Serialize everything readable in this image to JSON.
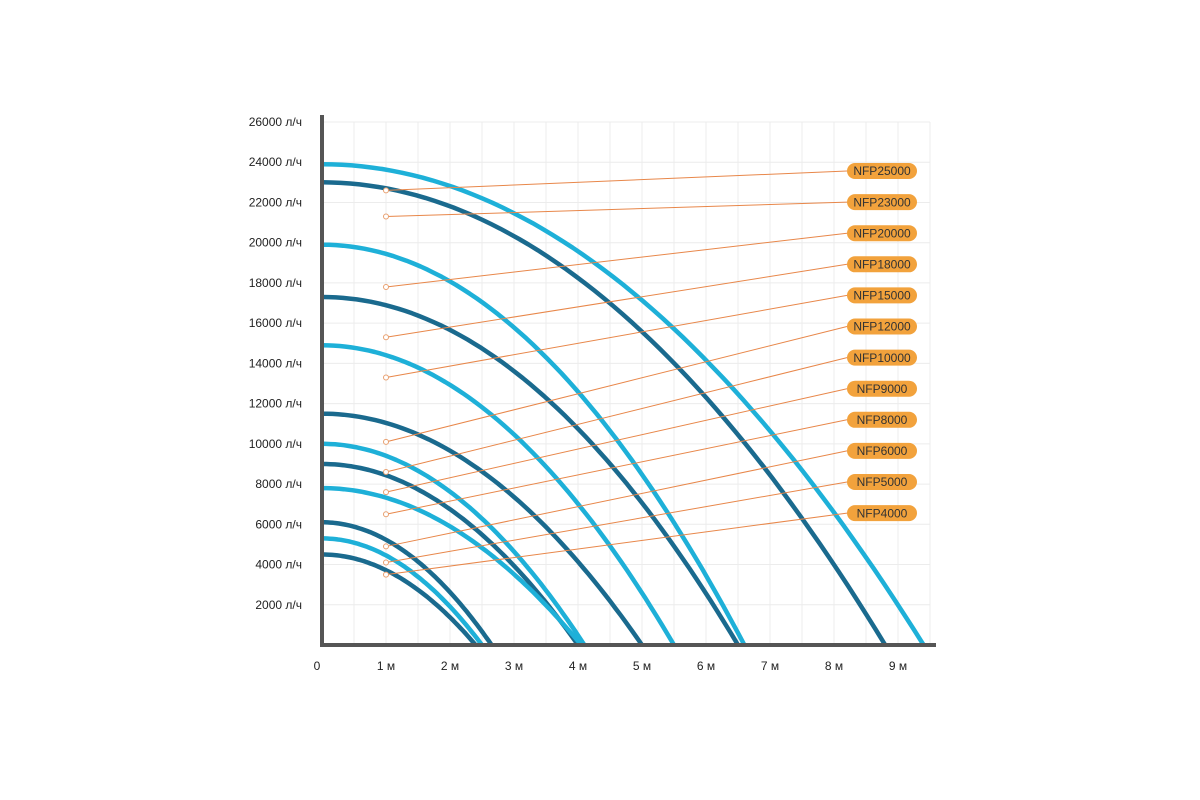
{
  "chart_data": {
    "type": "line",
    "xlim": [
      0,
      9.5
    ],
    "ylim": [
      0,
      26000
    ],
    "x_ticks": [
      {
        "value": 0,
        "label": "0"
      },
      {
        "value": 1,
        "label": "1 м"
      },
      {
        "value": 2,
        "label": "2 м"
      },
      {
        "value": 3,
        "label": "3 м"
      },
      {
        "value": 4,
        "label": "4 м"
      },
      {
        "value": 5,
        "label": "5 м"
      },
      {
        "value": 6,
        "label": "6 м"
      },
      {
        "value": 7,
        "label": "7 м"
      },
      {
        "value": 8,
        "label": "8 м"
      },
      {
        "value": 9,
        "label": "9 м"
      }
    ],
    "y_ticks": [
      {
        "value": 2000,
        "label": "2000 л/ч"
      },
      {
        "value": 4000,
        "label": "4000 л/ч"
      },
      {
        "value": 6000,
        "label": "6000 л/ч"
      },
      {
        "value": 8000,
        "label": "8000 л/ч"
      },
      {
        "value": 10000,
        "label": "10000 л/ч"
      },
      {
        "value": 12000,
        "label": "12000 л/ч"
      },
      {
        "value": 14000,
        "label": "14000 л/ч"
      },
      {
        "value": 16000,
        "label": "16000 л/ч"
      },
      {
        "value": 18000,
        "label": "18000 л/ч"
      },
      {
        "value": 20000,
        "label": "20000 л/ч"
      },
      {
        "value": 22000,
        "label": "22000 л/ч"
      },
      {
        "value": 24000,
        "label": "24000 л/ч"
      },
      {
        "value": 26000,
        "label": "26000 л/ч"
      }
    ],
    "grid": true,
    "legend_position": "right",
    "colors": {
      "light": "#1eb0d8",
      "dark": "#1a6a8e",
      "label_bg": "#f2a23c",
      "leader": "#e8874a",
      "axis": "#555555",
      "grid": "#ececec"
    },
    "series": [
      {
        "name": "NFP25000",
        "max_flow": 23900,
        "max_head": 9.4,
        "marker_flow": 22600,
        "color": "light"
      },
      {
        "name": "NFP23000",
        "max_flow": 23000,
        "max_head": 8.8,
        "marker_flow": 21300,
        "color": "dark"
      },
      {
        "name": "NFP20000",
        "max_flow": 19900,
        "max_head": 6.6,
        "marker_flow": 17800,
        "color": "light"
      },
      {
        "name": "NFP18000",
        "max_flow": 17300,
        "max_head": 6.5,
        "marker_flow": 15300,
        "color": "dark"
      },
      {
        "name": "NFP15000",
        "max_flow": 14900,
        "max_head": 5.5,
        "marker_flow": 13300,
        "color": "light"
      },
      {
        "name": "NFP12000",
        "max_flow": 11500,
        "max_head": 5.0,
        "marker_flow": 10100,
        "color": "dark"
      },
      {
        "name": "NFP10000",
        "max_flow": 10000,
        "max_head": 4.1,
        "marker_flow": 8600,
        "color": "light"
      },
      {
        "name": "NFP9000",
        "max_flow": 9000,
        "max_head": 4.0,
        "marker_flow": 7600,
        "color": "dark"
      },
      {
        "name": "NFP8000",
        "max_flow": 7800,
        "max_head": 4.05,
        "marker_flow": 6500,
        "color": "light"
      },
      {
        "name": "NFP6000",
        "max_flow": 6100,
        "max_head": 2.65,
        "marker_flow": 4900,
        "color": "dark"
      },
      {
        "name": "NFP5000",
        "max_flow": 5300,
        "max_head": 2.5,
        "marker_flow": 4100,
        "color": "light"
      },
      {
        "name": "NFP4000",
        "max_flow": 4500,
        "max_head": 2.4,
        "marker_flow": 3500,
        "color": "dark"
      }
    ],
    "marker_x": 1
  }
}
